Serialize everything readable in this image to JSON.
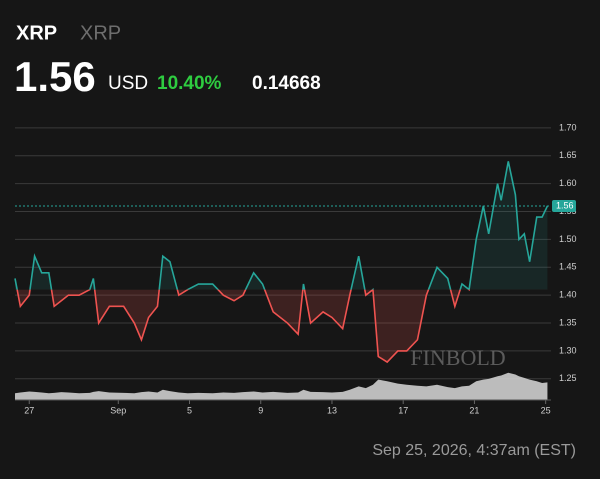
{
  "header": {
    "symbol": "XRP",
    "name": "XRP",
    "price": "1.56",
    "currency": "USD",
    "change_percent": "10.40%",
    "change": "0.14668",
    "timestamp": "Sep 25, 2026, 4:37am (EST)"
  },
  "chart_data": {
    "type": "line",
    "watermark": "FINBOLD",
    "x": [
      -0.8,
      -0.5,
      0,
      0.3,
      0.7,
      1.1,
      1.4,
      1.8,
      2.2,
      2.8,
      3.4,
      3.6,
      3.9,
      4.5,
      5.3,
      5.9,
      6.3,
      6.7,
      7.2,
      7.5,
      7.9,
      8.4,
      8.9,
      9.5,
      10.3,
      10.9,
      11.5,
      12.0,
      12.6,
      13.1,
      13.7,
      14.5,
      15.1,
      15.4,
      15.8,
      16.5,
      17.0,
      17.6,
      18.0,
      18.5,
      18.9,
      19.3,
      19.6,
      20.1,
      20.7,
      21.2,
      21.8,
      22.3,
      22.9,
      23.5,
      23.9,
      24.3,
      24.7,
      25.1,
      25.5,
      25.8,
      26.3,
      26.5,
      26.9,
      27.3,
      27.5,
      27.8,
      28.1,
      28.5,
      28.8,
      29.1
    ],
    "series": [
      {
        "name": "XRP",
        "up_color": "#26a69a",
        "down_color": "#ef5350",
        "baseline": 1.41,
        "values": [
          1.43,
          1.38,
          1.4,
          1.47,
          1.44,
          1.44,
          1.38,
          1.39,
          1.4,
          1.4,
          1.41,
          1.43,
          1.35,
          1.38,
          1.38,
          1.35,
          1.32,
          1.36,
          1.38,
          1.47,
          1.46,
          1.4,
          1.41,
          1.42,
          1.42,
          1.4,
          1.39,
          1.4,
          1.44,
          1.42,
          1.37,
          1.35,
          1.33,
          1.42,
          1.35,
          1.37,
          1.36,
          1.34,
          1.4,
          1.47,
          1.4,
          1.41,
          1.29,
          1.28,
          1.3,
          1.3,
          1.32,
          1.4,
          1.45,
          1.43,
          1.38,
          1.42,
          1.41,
          1.5,
          1.56,
          1.51,
          1.6,
          1.57,
          1.64,
          1.58,
          1.5,
          1.51,
          1.46,
          1.54,
          1.54,
          1.56
        ]
      }
    ],
    "volume": {
      "color": "#d9d9d9",
      "ylim": [
        0,
        100
      ],
      "values": [
        20,
        22,
        25,
        24,
        22,
        20,
        21,
        23,
        22,
        20,
        21,
        24,
        26,
        22,
        21,
        20,
        23,
        25,
        22,
        30,
        26,
        22,
        20,
        21,
        20,
        22,
        21,
        23,
        25,
        22,
        24,
        21,
        22,
        30,
        24,
        23,
        22,
        24,
        30,
        40,
        35,
        45,
        60,
        55,
        48,
        45,
        42,
        40,
        45,
        38,
        35,
        40,
        42,
        55,
        60,
        62,
        70,
        72,
        80,
        75,
        70,
        65,
        60,
        55,
        50,
        52
      ]
    },
    "xlim": [
      -0.8,
      29.3
    ],
    "xticks": [
      {
        "value": 0,
        "label": "27"
      },
      {
        "value": 5,
        "label": "Sep"
      },
      {
        "value": 9,
        "label": "5"
      },
      {
        "value": 13,
        "label": "9"
      },
      {
        "value": 17,
        "label": "13"
      },
      {
        "value": 21,
        "label": "17"
      },
      {
        "value": 25,
        "label": "21"
      },
      {
        "value": 29,
        "label": "25"
      }
    ],
    "ylim": [
      1.212,
      1.75
    ],
    "yticks": [
      {
        "value": 1.25,
        "label": "1.25"
      },
      {
        "value": 1.3,
        "label": "1.30"
      },
      {
        "value": 1.35,
        "label": "1.35"
      },
      {
        "value": 1.4,
        "label": "1.40"
      },
      {
        "value": 1.45,
        "label": "1.45"
      },
      {
        "value": 1.5,
        "label": "1.50"
      },
      {
        "value": 1.55,
        "label": "1.55"
      },
      {
        "value": 1.6,
        "label": "1.60"
      },
      {
        "value": 1.65,
        "label": "1.65"
      },
      {
        "value": 1.7,
        "label": "1.70"
      }
    ],
    "last_value": 1.56,
    "grid": true
  }
}
